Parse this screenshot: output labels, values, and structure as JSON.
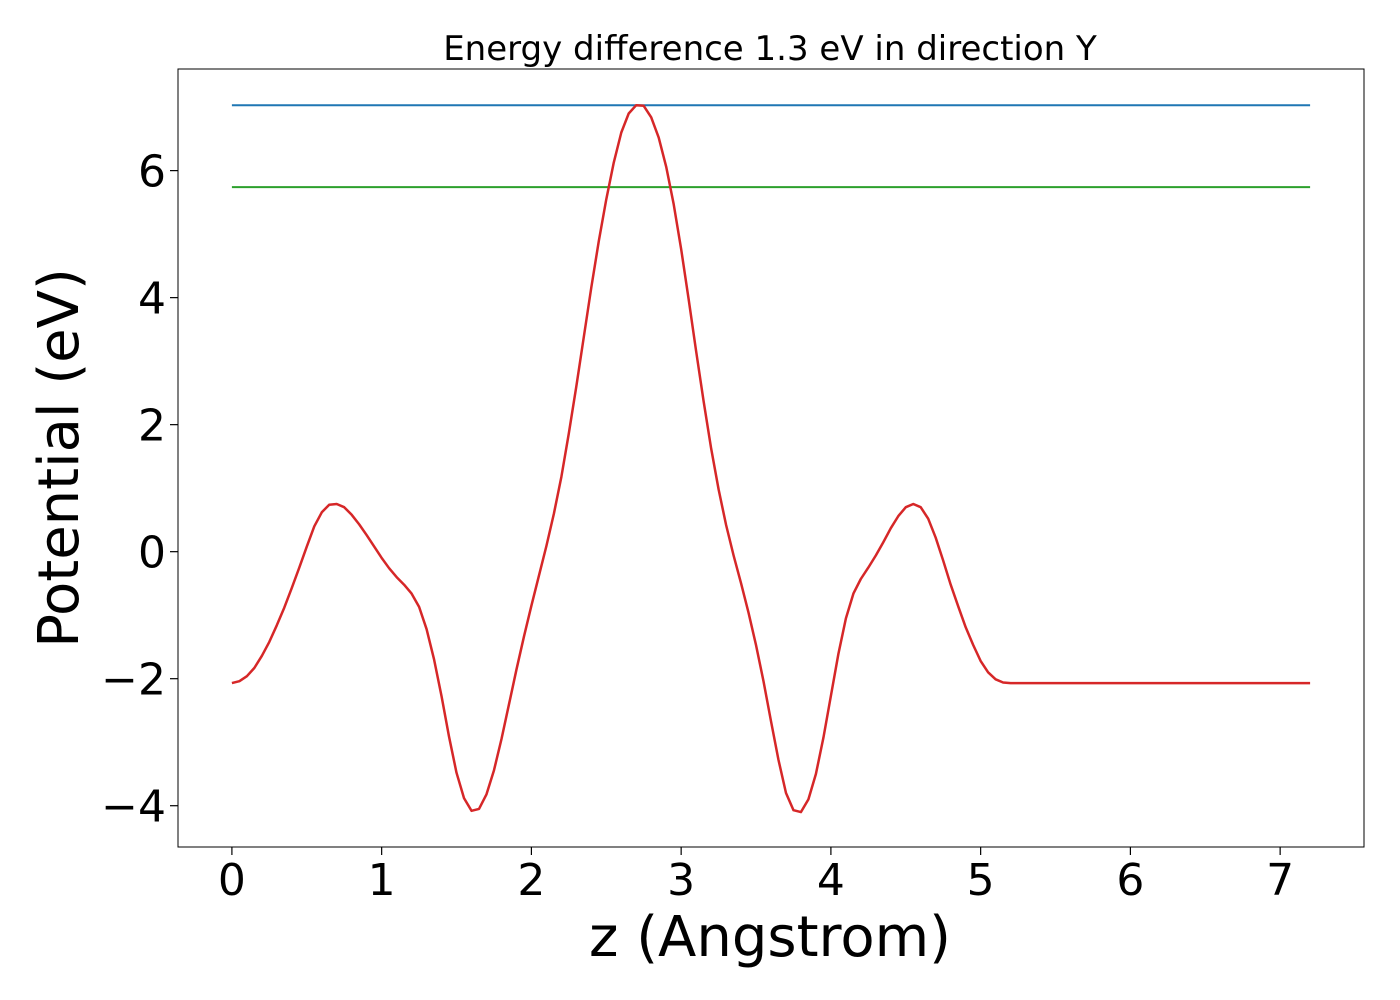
{
  "chart_data": {
    "type": "line",
    "title": "Energy difference 1.3 eV in direction Y",
    "xlabel": "z (Angstrom)",
    "ylabel": "Potential (eV)",
    "xlim": [
      -0.36,
      7.56
    ],
    "ylim": [
      -4.65,
      7.6
    ],
    "xticks": [
      0,
      1,
      2,
      3,
      4,
      5,
      6,
      7
    ],
    "xtick_labels": [
      "0",
      "1",
      "2",
      "3",
      "4",
      "5",
      "6",
      "7"
    ],
    "yticks": [
      -4,
      -2,
      0,
      2,
      4,
      6
    ],
    "ytick_labels": [
      "−4",
      "−2",
      "0",
      "2",
      "4",
      "6"
    ],
    "grid": false,
    "series": [
      {
        "color": "#d62728",
        "x": [
          0.0,
          0.05,
          0.1,
          0.15,
          0.2,
          0.25,
          0.3,
          0.35,
          0.4,
          0.45,
          0.5,
          0.55,
          0.6,
          0.65,
          0.7,
          0.75,
          0.8,
          0.85,
          0.9,
          0.95,
          1.0,
          1.05,
          1.1,
          1.15,
          1.2,
          1.25,
          1.3,
          1.35,
          1.4,
          1.45,
          1.5,
          1.55,
          1.6,
          1.65,
          1.7,
          1.75,
          1.8,
          1.85,
          1.9,
          1.95,
          2.0,
          2.05,
          2.1,
          2.15,
          2.2,
          2.25,
          2.3,
          2.35,
          2.4,
          2.45,
          2.5,
          2.55,
          2.6,
          2.65,
          2.7,
          2.75,
          2.8,
          2.85,
          2.9,
          2.95,
          3.0,
          3.05,
          3.1,
          3.15,
          3.2,
          3.25,
          3.3,
          3.35,
          3.4,
          3.45,
          3.5,
          3.55,
          3.6,
          3.65,
          3.7,
          3.75,
          3.8,
          3.85,
          3.9,
          3.95,
          4.0,
          4.05,
          4.1,
          4.15,
          4.2,
          4.25,
          4.3,
          4.35,
          4.4,
          4.45,
          4.5,
          4.55,
          4.6,
          4.65,
          4.7,
          4.75,
          4.8,
          4.85,
          4.9,
          4.95,
          5.0,
          5.05,
          5.1,
          5.15,
          5.2,
          5.25,
          5.3,
          5.35,
          5.4,
          5.45,
          5.5,
          5.55,
          5.6,
          5.65,
          5.7,
          5.75,
          5.8,
          5.85,
          5.9,
          5.95,
          6.0,
          6.05,
          6.1,
          6.15,
          6.2,
          6.25,
          6.3,
          6.35,
          6.4,
          6.45,
          6.5,
          6.55,
          6.6,
          6.65,
          6.7,
          6.75,
          6.8,
          6.85,
          6.9,
          6.95,
          7.0,
          7.05,
          7.1,
          7.15,
          7.2
        ],
        "y": [
          -2.07,
          -2.04,
          -1.96,
          -1.83,
          -1.64,
          -1.42,
          -1.16,
          -0.88,
          -0.57,
          -0.25,
          0.08,
          0.4,
          0.62,
          0.74,
          0.75,
          0.7,
          0.58,
          0.43,
          0.26,
          0.08,
          -0.1,
          -0.26,
          -0.4,
          -0.52,
          -0.66,
          -0.87,
          -1.22,
          -1.7,
          -2.28,
          -2.91,
          -3.48,
          -3.88,
          -4.08,
          -4.05,
          -3.82,
          -3.44,
          -2.95,
          -2.41,
          -1.86,
          -1.34,
          -0.85,
          -0.38,
          0.09,
          0.6,
          1.18,
          1.86,
          2.6,
          3.38,
          4.16,
          4.89,
          5.55,
          6.13,
          6.6,
          6.9,
          7.03,
          7.02,
          6.84,
          6.52,
          6.06,
          5.47,
          4.76,
          3.98,
          3.16,
          2.37,
          1.63,
          0.98,
          0.42,
          -0.06,
          -0.5,
          -0.96,
          -1.47,
          -2.04,
          -2.67,
          -3.28,
          -3.8,
          -4.07,
          -4.1,
          -3.9,
          -3.5,
          -2.93,
          -2.27,
          -1.61,
          -1.05,
          -0.66,
          -0.43,
          -0.25,
          -0.06,
          0.15,
          0.37,
          0.56,
          0.7,
          0.75,
          0.7,
          0.52,
          0.22,
          -0.14,
          -0.52,
          -0.86,
          -1.19,
          -1.47,
          -1.72,
          -1.9,
          -2.01,
          -2.06,
          -2.07,
          -2.07,
          -2.07,
          -2.07,
          -2.07,
          -2.07,
          -2.07,
          -2.07,
          -2.07,
          -2.07,
          -2.07,
          -2.07,
          -2.07,
          -2.07,
          -2.07,
          -2.07,
          -2.07,
          -2.07,
          -2.07,
          -2.07,
          -2.07,
          -2.07,
          -2.07,
          -2.07,
          -2.07,
          -2.07,
          -2.07,
          -2.07,
          -2.07,
          -2.07,
          -2.07,
          -2.07,
          -2.07,
          -2.07,
          -2.07,
          -2.07,
          -2.07,
          -2.07,
          -2.07,
          -2.07,
          -2.07
        ]
      },
      {
        "color": "#1f77b4",
        "x": [
          0.0,
          7.2
        ],
        "y": [
          7.03,
          7.03
        ]
      },
      {
        "color": "#2ca02c",
        "x": [
          0.0,
          7.2
        ],
        "y": [
          5.74,
          5.74
        ]
      }
    ]
  }
}
